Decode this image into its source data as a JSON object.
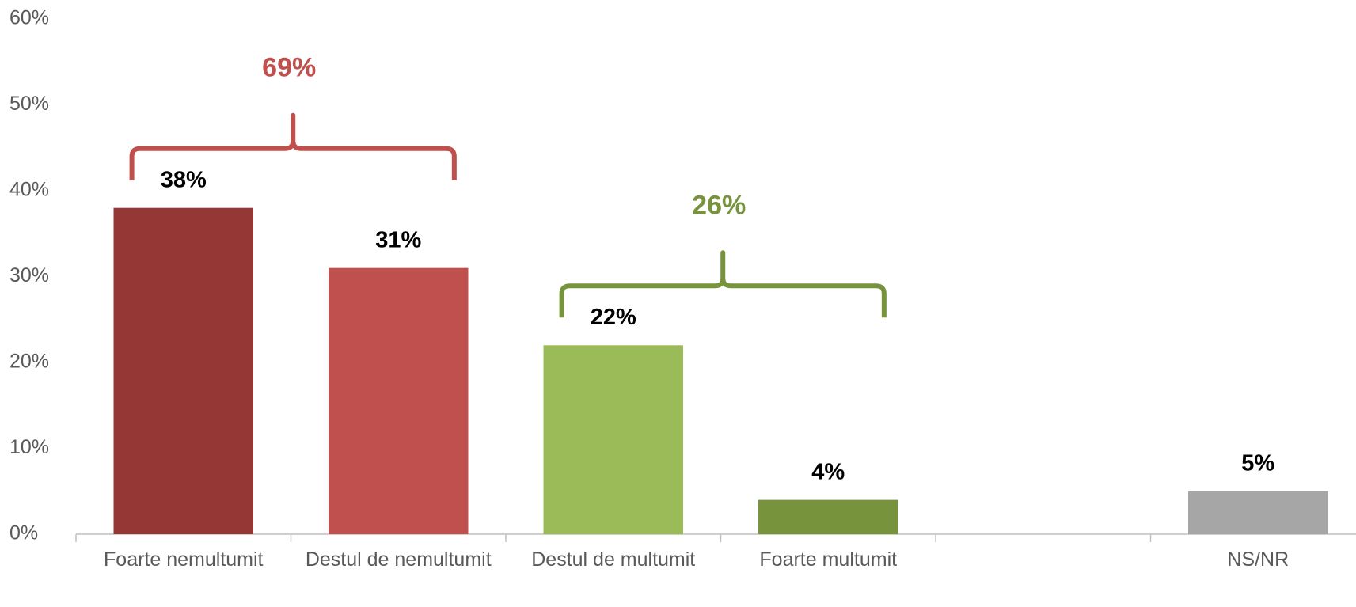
{
  "chart_data": {
    "type": "bar",
    "categories": [
      "Foarte nemultumit",
      "Destul de nemultumit",
      "Destul de multumit",
      "Foarte multumit",
      null,
      "NS/NR"
    ],
    "values": [
      38,
      31,
      22,
      4,
      null,
      5
    ],
    "value_labels": [
      "38%",
      "31%",
      "22%",
      "4%",
      null,
      "5%"
    ],
    "colors": [
      "#953735",
      "#c0504d",
      "#9bbb59",
      "#77933c",
      null,
      "#a6a6a6"
    ],
    "ylim": [
      0,
      60
    ],
    "yticks": [
      {
        "value": 0,
        "label": "0%"
      },
      {
        "value": 10,
        "label": "10%"
      },
      {
        "value": 20,
        "label": "20%"
      },
      {
        "value": 30,
        "label": "30%"
      },
      {
        "value": 40,
        "label": "40%"
      },
      {
        "value": 50,
        "label": "50%"
      },
      {
        "value": 60,
        "label": "60%"
      }
    ],
    "grid": false,
    "annotations": [
      {
        "text": "69%",
        "color": "#c0504d"
      },
      {
        "text": "26%",
        "color": "#77933c"
      }
    ]
  }
}
